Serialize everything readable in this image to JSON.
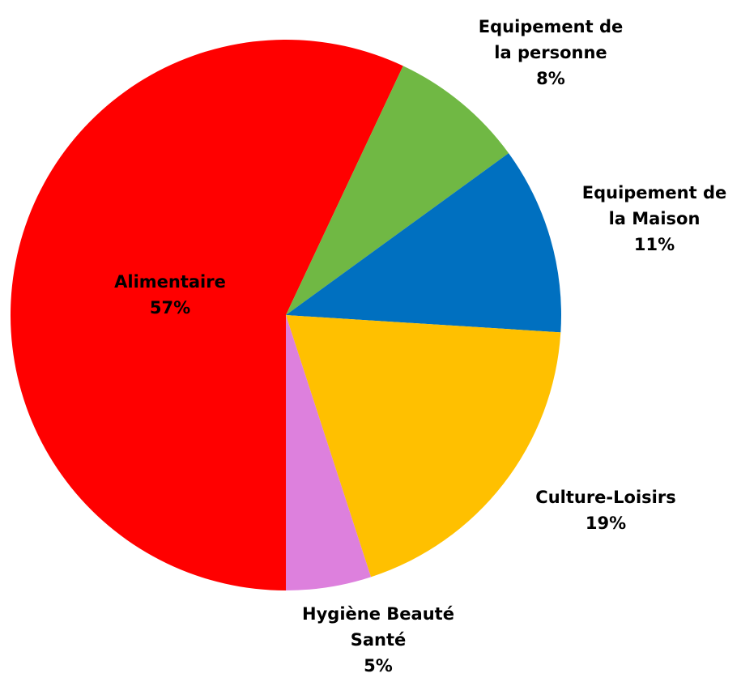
{
  "chart_data": {
    "type": "pie",
    "categories": [
      "Alimentaire",
      "Equipement de la personne",
      "Equipement de la Maison",
      "Culture-Loisirs",
      "Hygiène Beauté Santé"
    ],
    "values": [
      57,
      8,
      11,
      19,
      5
    ],
    "value_labels": [
      "57%",
      "8%",
      "11%",
      "19%",
      "5%"
    ],
    "colors": [
      "#ff0000",
      "#70b844",
      "#0070c0",
      "#ffc000",
      "#dd80dd"
    ]
  }
}
